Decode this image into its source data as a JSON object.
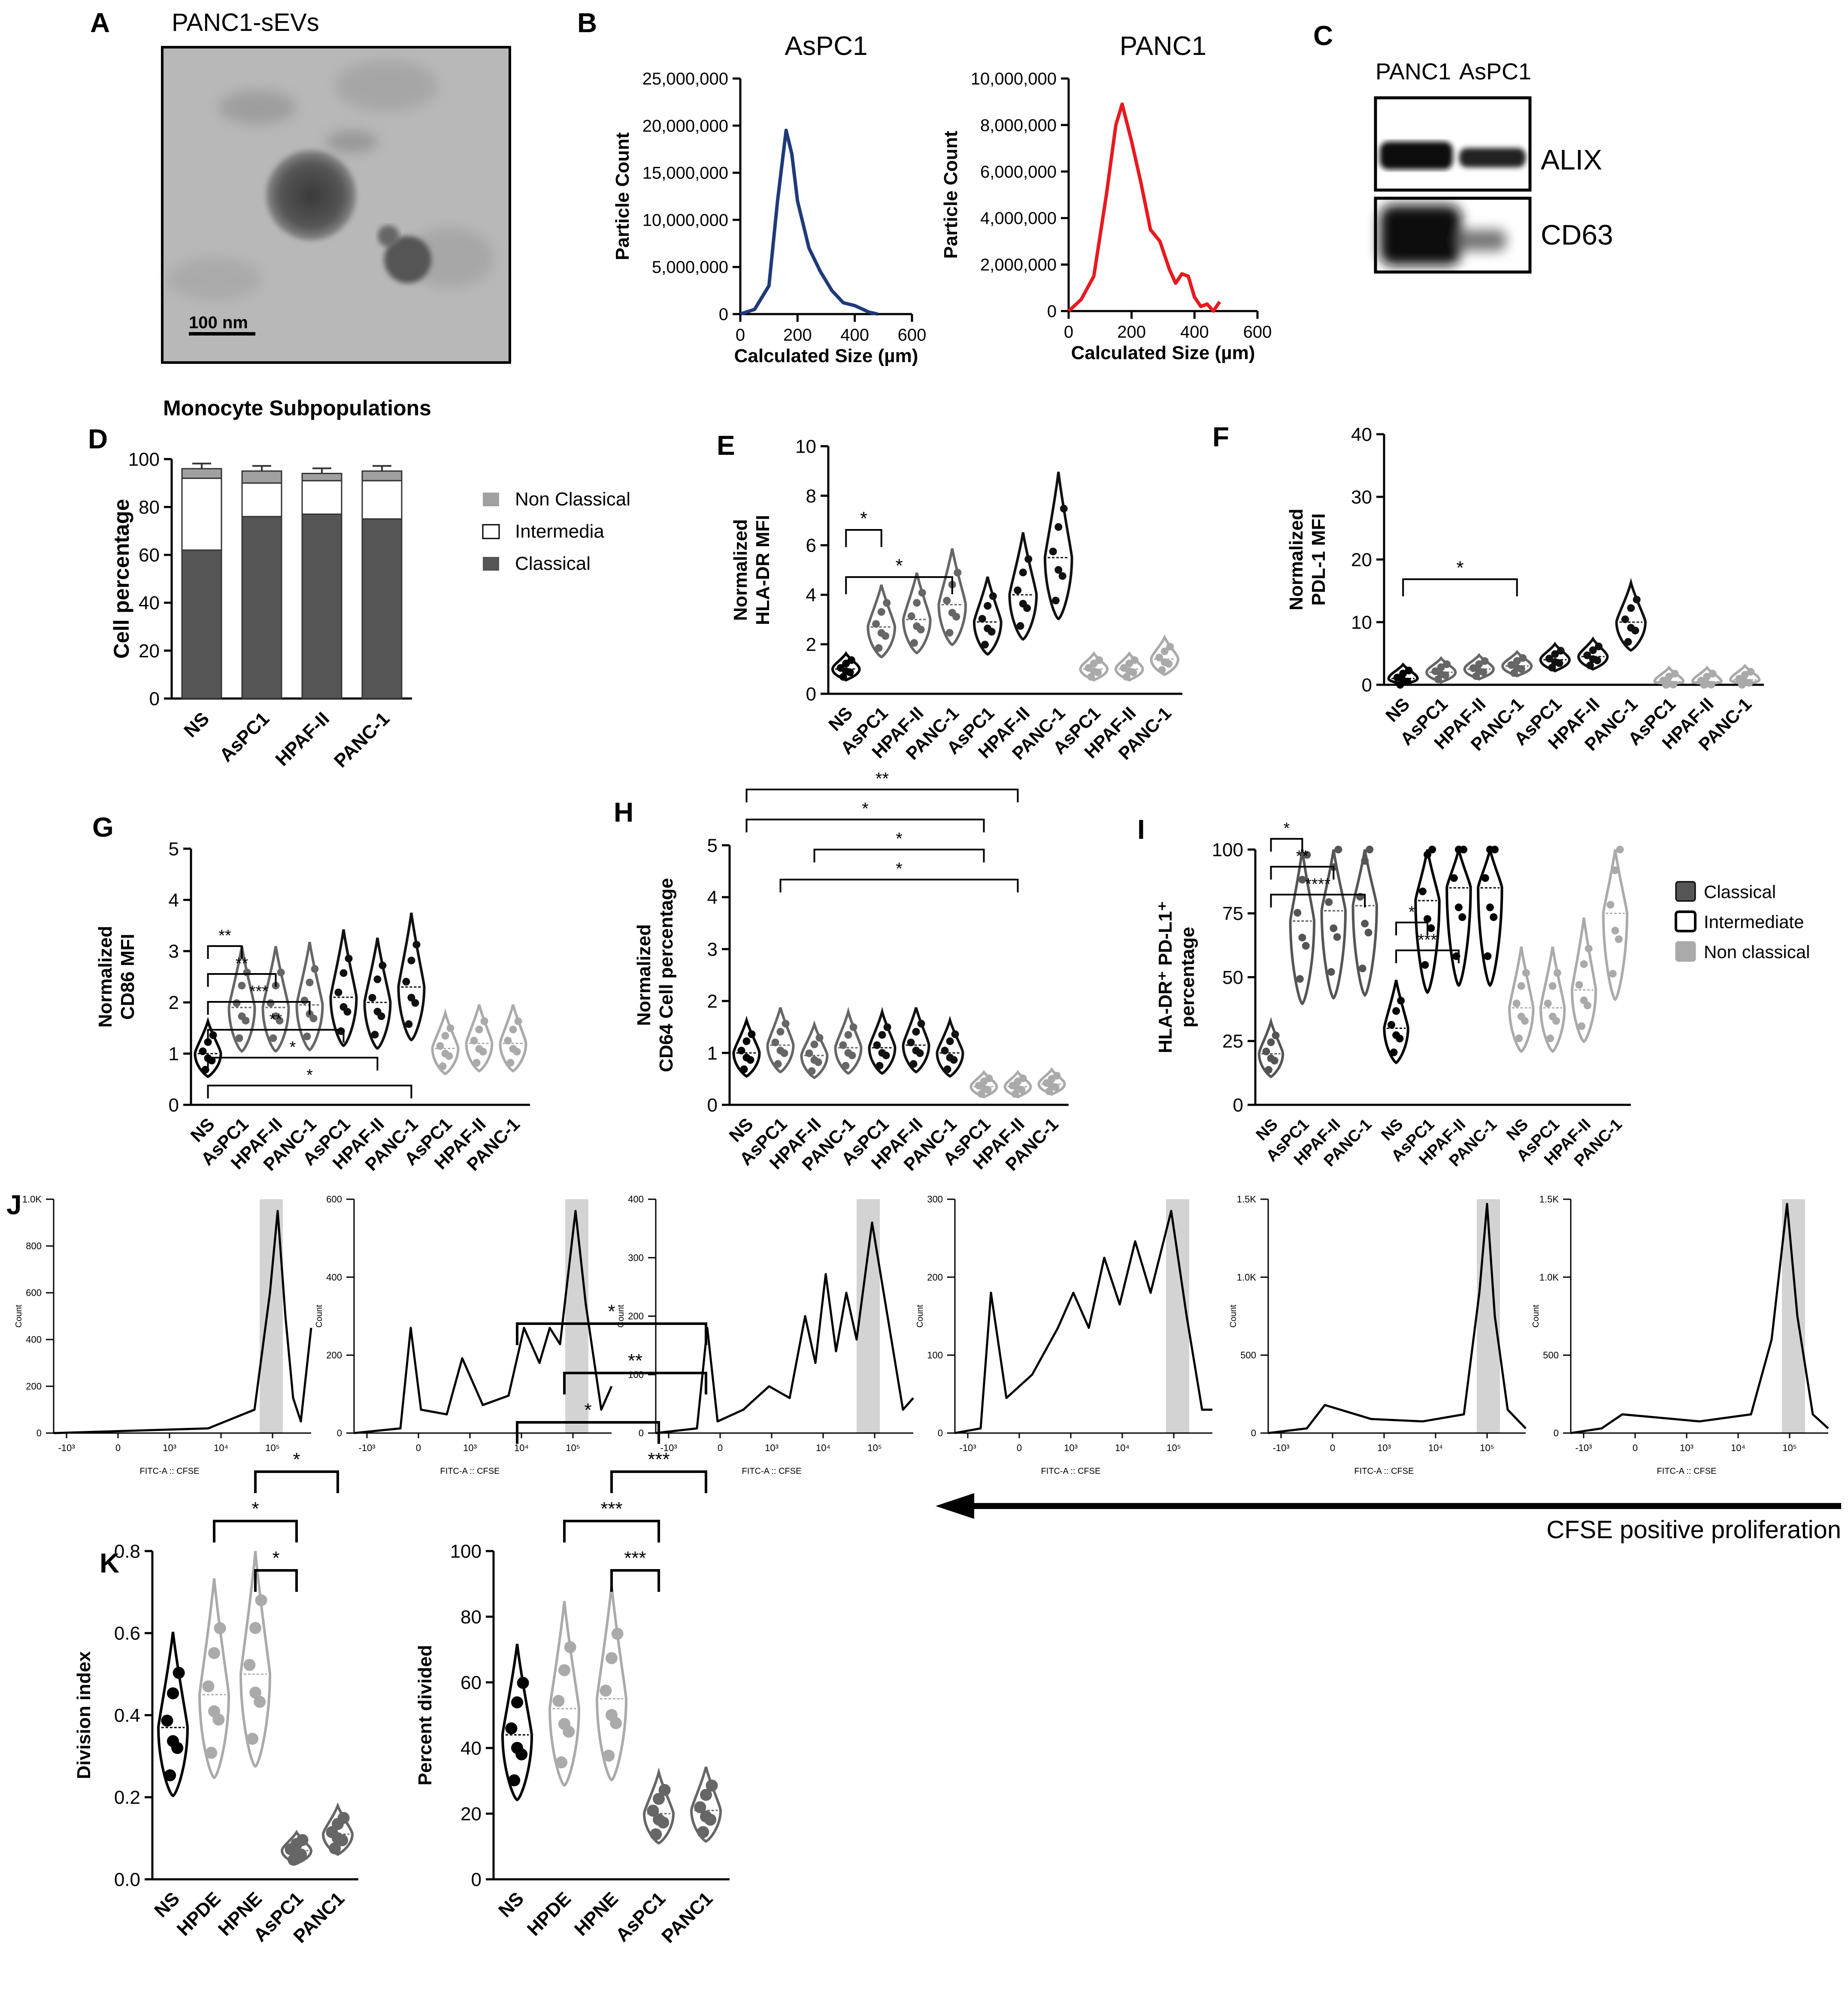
{
  "panels": {
    "A": {
      "letter": "A",
      "title": "PANC1-sEVs",
      "scalebar": "100 nm"
    },
    "B": {
      "letter": "B",
      "charts": [
        {
          "title": "AsPC1",
          "ylabel": "Particle Count",
          "xlabel": "Calculated Size (µm)",
          "yticks": [
            "0",
            "5,000,000",
            "10,000,000",
            "15,000,000",
            "20,000,000",
            "25,000,000"
          ],
          "xticks": [
            "0",
            "200",
            "400",
            "600"
          ],
          "color": "#1f3a7a"
        },
        {
          "title": "PANC1",
          "ylabel": "Particle Count",
          "xlabel": "Calculated Size (µm)",
          "yticks": [
            "0",
            "2,000,000",
            "4,000,000",
            "6,000,000",
            "8,000,000",
            "10,000,000"
          ],
          "xticks": [
            "0",
            "200",
            "400",
            "600"
          ],
          "color": "#e8191e"
        }
      ]
    },
    "C": {
      "letter": "C",
      "lanes": [
        "PANC1",
        "AsPC1"
      ],
      "bands": [
        "ALIX",
        "CD63"
      ]
    },
    "D": {
      "letter": "D",
      "title": "Monocyte Subpopulations",
      "ylabel": "Cell percentage",
      "yticks": [
        "0",
        "20",
        "40",
        "60",
        "80",
        "100"
      ],
      "legend": [
        "Non Classical",
        "Intermedia",
        "Classical"
      ]
    },
    "E": {
      "letter": "E",
      "ylabel1": "Normalized",
      "ylabel2": "HLA-DR MFI",
      "yticks": [
        "0",
        "2",
        "4",
        "6",
        "8",
        "10"
      ]
    },
    "F": {
      "letter": "F",
      "ylabel1": "Normalized",
      "ylabel2": "PDL-1 MFI",
      "yticks": [
        "0",
        "10",
        "20",
        "30",
        "40"
      ]
    },
    "G": {
      "letter": "G",
      "ylabel1": "Normalized",
      "ylabel2": "CD86 MFI",
      "yticks": [
        "0",
        "1",
        "2",
        "3",
        "4",
        "5"
      ]
    },
    "H": {
      "letter": "H",
      "ylabel1": "Normalized",
      "ylabel2": "CD64 Cell percentage",
      "yticks": [
        "0",
        "1",
        "2",
        "3",
        "4",
        "5"
      ]
    },
    "I": {
      "letter": "I",
      "ylabel1": "HLA-DR⁺ PD-L1⁺",
      "ylabel2": "percentage",
      "yticks": [
        "0",
        "25",
        "50",
        "75",
        "100"
      ],
      "legend": [
        "Classical",
        "Intermediate",
        "Non classical"
      ]
    },
    "J": {
      "letter": "J",
      "xlabel": "FITC-A :: CFSE",
      "ylabel": "Count",
      "arrow_label": "CFSE positive proliferation",
      "xticks": [
        "-10³",
        "0",
        "10³",
        "10⁴",
        "10⁵"
      ],
      "histos": [
        {
          "yticks": [
            "0",
            "200",
            "400",
            "600",
            "800",
            "1.0K"
          ]
        },
        {
          "yticks": [
            "0",
            "200",
            "400",
            "600"
          ]
        },
        {
          "yticks": [
            "0",
            "100",
            "200",
            "300",
            "400"
          ]
        },
        {
          "yticks": [
            "0",
            "100",
            "200",
            "300"
          ]
        },
        {
          "yticks": [
            "0",
            "500",
            "1.0K",
            "1.5K"
          ]
        },
        {
          "yticks": [
            "0",
            "500",
            "1.0K",
            "1.5K"
          ]
        }
      ]
    },
    "K": {
      "letter": "K",
      "charts": [
        {
          "ylabel": "Division index",
          "yticks": [
            "0.0",
            "0.2",
            "0.4",
            "0.6",
            "0.8"
          ]
        },
        {
          "ylabel": "Percent divided",
          "yticks": [
            "0",
            "20",
            "40",
            "60",
            "80",
            "100"
          ]
        }
      ]
    }
  },
  "categories": {
    "D": [
      "NS",
      "AsPC1",
      "HPAF-II",
      "PANC-1"
    ],
    "EFGH": [
      "NS",
      "AsPC1",
      "HPAF-II",
      "PANC-1",
      "AsPC1",
      "HPAF-II",
      "PANC-1",
      "AsPC1",
      "HPAF-II",
      "PANC-1"
    ],
    "I": [
      "NS",
      "AsPC1",
      "HPAF-II",
      "PANC-1",
      "NS",
      "AsPC1",
      "HPAF-II",
      "PANC-1",
      "NS",
      "AsPC1",
      "HPAF-II",
      "PANC-1"
    ],
    "K": [
      "NS",
      "HPDE",
      "HPNE",
      "AsPC1",
      "PANC1"
    ]
  },
  "chart_data": [
    {
      "panel": "B-AsPC1",
      "type": "line",
      "title": "AsPC1",
      "xlabel": "Calculated Size (µm)",
      "ylabel": "Particle Count",
      "x": [
        0,
        50,
        100,
        130,
        160,
        180,
        200,
        240,
        280,
        320,
        360,
        400,
        450,
        480
      ],
      "y": [
        0,
        500000,
        3000000,
        12000000,
        19500000,
        17000000,
        12000000,
        7000000,
        4500000,
        2500000,
        1200000,
        900000,
        200000,
        0
      ],
      "xlim": [
        0,
        600
      ],
      "ylim": [
        0,
        25000000
      ]
    },
    {
      "panel": "B-PANC1",
      "type": "line",
      "title": "PANC1",
      "xlabel": "Calculated Size (µm)",
      "ylabel": "Particle Count",
      "x": [
        0,
        40,
        80,
        120,
        150,
        170,
        200,
        230,
        260,
        290,
        320,
        340,
        360,
        380,
        400,
        420,
        440,
        460,
        480
      ],
      "y": [
        0,
        500000,
        1500000,
        5000000,
        8000000,
        8900000,
        7300000,
        5500000,
        3500000,
        3000000,
        1800000,
        1200000,
        1600000,
        1500000,
        600000,
        200000,
        300000,
        0,
        400000
      ],
      "xlim": [
        0,
        600
      ],
      "ylim": [
        0,
        10000000
      ]
    },
    {
      "panel": "D",
      "type": "bar",
      "categories": [
        "NS",
        "AsPC1",
        "HPAF-II",
        "PANC-1"
      ],
      "series": [
        {
          "name": "Classical",
          "values": [
            62,
            76,
            77,
            75
          ]
        },
        {
          "name": "Intermedia",
          "values": [
            30,
            14,
            14,
            16
          ]
        },
        {
          "name": "Non Classical",
          "values": [
            4,
            5,
            3,
            4
          ]
        }
      ],
      "ylim": [
        0,
        100
      ]
    },
    {
      "panel": "E",
      "type": "scatter",
      "medians": [
        1.0,
        2.7,
        3.0,
        3.6,
        2.9,
        4.0,
        5.5,
        1.0,
        1.0,
        1.4
      ],
      "sig": [
        {
          "a": 0,
          "b": 1,
          "label": "*"
        },
        {
          "a": 0,
          "b": 3,
          "label": "*"
        }
      ],
      "ylim": [
        0,
        10
      ]
    },
    {
      "panel": "F",
      "type": "scatter",
      "medians": [
        1.0,
        2.0,
        2.5,
        3.0,
        4.0,
        4.5,
        10,
        0.5,
        0.5,
        0.8
      ],
      "sig": [
        {
          "a": 0,
          "b": 3,
          "label": "*"
        }
      ],
      "ylim": [
        0,
        40
      ]
    },
    {
      "panel": "G",
      "type": "scatter",
      "medians": [
        1.0,
        1.9,
        1.9,
        1.95,
        2.1,
        2.0,
        2.3,
        1.1,
        1.2,
        1.2
      ],
      "sig": [
        {
          "a": 0,
          "b": 1,
          "label": "**"
        },
        {
          "a": 0,
          "b": 2,
          "label": "**"
        },
        {
          "a": 0,
          "b": 3,
          "label": "***"
        },
        {
          "a": 0,
          "b": 4,
          "label": "**"
        },
        {
          "a": 0,
          "b": 5,
          "label": "*"
        },
        {
          "a": 0,
          "b": 6,
          "label": "*"
        }
      ],
      "ylim": [
        0,
        5
      ]
    },
    {
      "panel": "H",
      "type": "scatter",
      "medians": [
        1.0,
        1.15,
        0.95,
        1.1,
        1.1,
        1.15,
        1.0,
        0.35,
        0.35,
        0.4
      ],
      "sig": [
        {
          "a": 0,
          "b": 8,
          "label": "**"
        },
        {
          "a": 0,
          "b": 7,
          "label": "*"
        },
        {
          "a": 2,
          "b": 7,
          "label": "*"
        },
        {
          "a": 1,
          "b": 8,
          "label": "*"
        }
      ],
      "ylim": [
        0,
        5
      ]
    },
    {
      "panel": "I",
      "type": "scatter",
      "medians": [
        20,
        72,
        76,
        78,
        30,
        80,
        85,
        85,
        38,
        38,
        45,
        75
      ],
      "sig": [
        {
          "a": 0,
          "b": 1,
          "label": "*"
        },
        {
          "a": 0,
          "b": 2,
          "label": "**"
        },
        {
          "a": 0,
          "b": 3,
          "label": "****"
        },
        {
          "a": 4,
          "b": 5,
          "label": "*"
        },
        {
          "a": 4,
          "b": 6,
          "label": "***"
        }
      ],
      "ylim": [
        0,
        100
      ]
    },
    {
      "panel": "K-division",
      "type": "scatter",
      "categories": [
        "NS",
        "HPDE",
        "HPNE",
        "AsPC1",
        "PANC1"
      ],
      "medians": [
        0.37,
        0.45,
        0.5,
        0.07,
        0.11
      ],
      "sig": [
        {
          "a": 2,
          "b": 3,
          "label": "*"
        },
        {
          "a": 1,
          "b": 3,
          "label": "*"
        },
        {
          "a": 2,
          "b": 4,
          "label": "*"
        }
      ],
      "ylim": [
        0,
        0.8
      ]
    },
    {
      "panel": "K-percent",
      "type": "scatter",
      "categories": [
        "NS",
        "HPDE",
        "HPNE",
        "AsPC1",
        "PANC1"
      ],
      "medians": [
        44,
        52,
        55,
        20,
        21
      ],
      "sig": [
        {
          "a": 2,
          "b": 3,
          "label": "***"
        },
        {
          "a": 1,
          "b": 3,
          "label": "***"
        },
        {
          "a": 2,
          "b": 4,
          "label": "***"
        },
        {
          "a": 0,
          "b": 3,
          "label": "*"
        },
        {
          "a": 1,
          "b": 4,
          "label": "**"
        },
        {
          "a": 0,
          "b": 4,
          "label": "*"
        }
      ],
      "ylim": [
        0,
        100
      ]
    }
  ]
}
